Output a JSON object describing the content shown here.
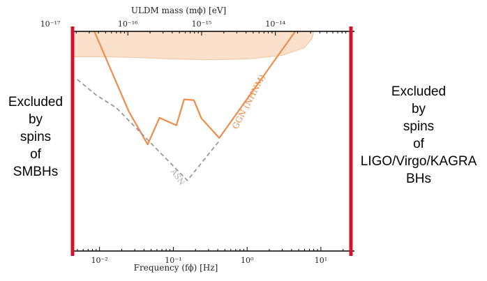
{
  "left_annotation": {
    "lines": [
      "Excluded",
      "by",
      "spins",
      "of",
      "SMBHs"
    ]
  },
  "right_annotation": {
    "lines": [
      "Excluded",
      "by",
      "spins",
      "of",
      "LIGO/Virgo/KAGRA",
      "BHs"
    ]
  },
  "colors": {
    "exclusion_bar": "#d4122b",
    "sensitivity_curve": "#f08c4a",
    "excluded_band": "#fbe0cc",
    "asn_curve": "#999999"
  },
  "chart_data": {
    "type": "line",
    "title": "",
    "xlabel": "Frequency (fϕ) [Hz]",
    "x_top_label": "ULDM mass (mϕ) [eV]",
    "x_scale": "log",
    "xlim": [
      0.0045,
      25
    ],
    "x_ticks": [
      {
        "value": 0.01,
        "label": "10⁻²"
      },
      {
        "value": 0.1,
        "label": "10⁻¹"
      },
      {
        "value": 1,
        "label": "10⁰"
      },
      {
        "value": 10,
        "label": "10¹"
      }
    ],
    "x_top_ticks": [
      {
        "value": 1e-17,
        "label": "10⁻¹⁷"
      },
      {
        "value": 1e-16,
        "label": "10⁻¹⁶"
      },
      {
        "value": 1e-15,
        "label": "10⁻¹⁵"
      },
      {
        "value": 1e-14,
        "label": "10⁻¹⁴"
      }
    ],
    "y_scale": "log",
    "ylim": [
      0.001,
      1
    ],
    "y_ticks_shown": false,
    "excluded_region": {
      "x": [
        0.0045,
        0.01,
        0.03,
        0.1,
        0.3,
        1,
        3,
        6,
        7.5,
        8
      ],
      "y_lower": [
        0.45,
        0.45,
        0.44,
        0.42,
        0.41,
        0.42,
        0.47,
        0.6,
        0.78,
        1.0
      ],
      "y_upper": 1.0
    },
    "series": [
      {
        "name": "GGN (NHNM)",
        "style": "solid",
        "x": [
          0.0085,
          0.025,
          0.045,
          0.065,
          0.11,
          0.14,
          0.19,
          0.24,
          0.42,
          4.5
        ],
        "y": [
          1.0,
          0.08,
          0.0285,
          0.066,
          0.052,
          0.118,
          0.115,
          0.065,
          0.035,
          1.0
        ]
      },
      {
        "name": "ASN",
        "style": "dashed",
        "x": [
          0.005,
          0.009,
          0.017,
          0.1,
          0.155,
          0.42
        ],
        "y": [
          0.22,
          0.135,
          0.09,
          0.0145,
          0.0092,
          0.032
        ]
      }
    ],
    "grid": false,
    "legend": "none"
  }
}
